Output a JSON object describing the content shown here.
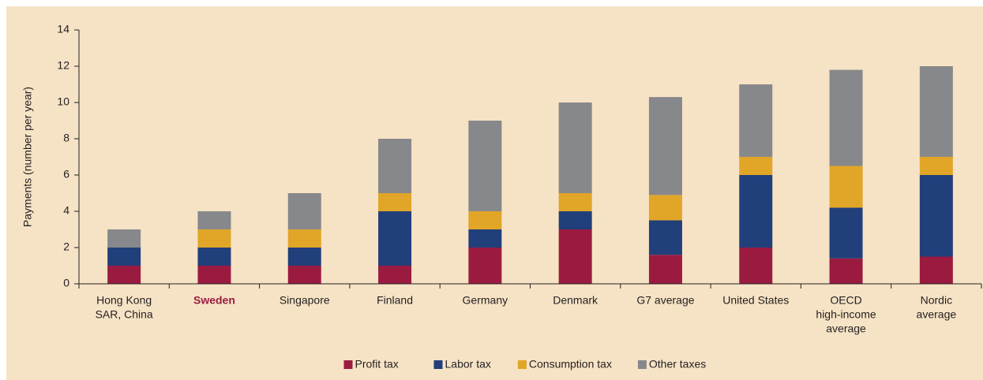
{
  "chart_data": {
    "type": "stacked_bar",
    "ylabel": "Payments (number per year)",
    "categories": [
      [
        "Hong Kong",
        "SAR, China"
      ],
      [
        "Sweden"
      ],
      [
        "Singapore"
      ],
      [
        "Finland"
      ],
      [
        "Germany"
      ],
      [
        "Denmark"
      ],
      [
        "G7 average"
      ],
      [
        "United States"
      ],
      [
        "OECD",
        "high-income",
        "average"
      ],
      [
        "Nordic",
        "average"
      ]
    ],
    "highlight": "Sweden",
    "highlight_color": "#9b1b40",
    "series": [
      {
        "name": "Profit tax",
        "color": "#9b1b40",
        "values": [
          1,
          1,
          1,
          1,
          2,
          3,
          1.6,
          2,
          1.4,
          1.5
        ]
      },
      {
        "name": "Labor tax",
        "color": "#213f7b",
        "values": [
          1,
          1,
          1,
          3,
          1,
          1,
          1.9,
          4,
          2.8,
          4.5
        ]
      },
      {
        "name": "Consumption tax",
        "color": "#e1a527",
        "values": [
          0,
          1,
          1,
          1,
          1,
          1,
          1.4,
          1,
          2.3,
          1
        ]
      },
      {
        "name": "Other taxes",
        "color": "#87888b",
        "values": [
          1,
          1,
          2,
          3,
          5,
          5,
          5.4,
          4,
          5.3,
          5
        ]
      }
    ],
    "ylim": [
      0,
      14
    ],
    "yticks": [
      0,
      2,
      4,
      6,
      8,
      10,
      12,
      14
    ],
    "legend": "bottom"
  }
}
